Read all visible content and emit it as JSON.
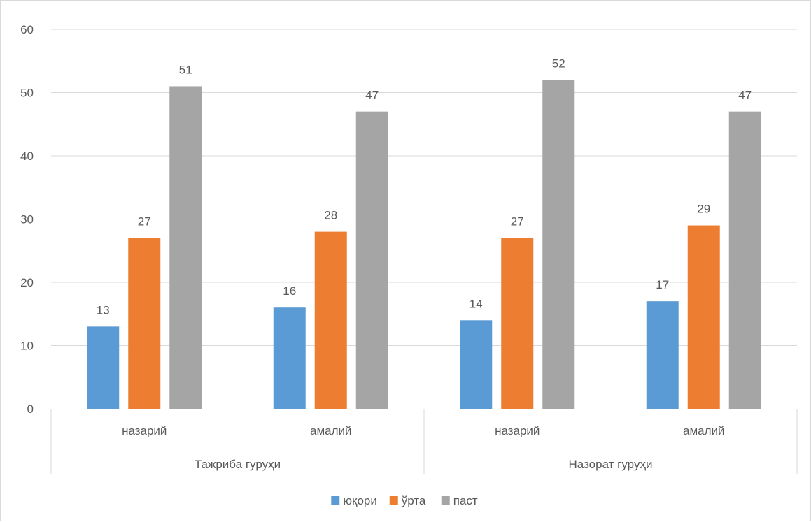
{
  "chart_data": {
    "type": "bar",
    "categories": [
      "назарий",
      "амалий",
      "назарий",
      "амалий"
    ],
    "groups": [
      {
        "label": "Тажриба гуруҳи",
        "categories": [
          "назарий",
          "амалий"
        ]
      },
      {
        "label": "Назорат гуруҳи",
        "categories": [
          "назарий",
          "амалий"
        ]
      }
    ],
    "series": [
      {
        "name": "юқори",
        "color": "#5b9bd5",
        "values": [
          13,
          16,
          14,
          17
        ]
      },
      {
        "name": "ўрта",
        "color": "#ed7d31",
        "values": [
          27,
          28,
          27,
          29
        ]
      },
      {
        "name": "паст",
        "color": "#a5a5a5",
        "values": [
          51,
          47,
          52,
          47
        ]
      }
    ],
    "ylim": [
      0,
      60
    ],
    "yticks": [
      0,
      10,
      20,
      30,
      40,
      50,
      60
    ],
    "grid": true,
    "data_labels": true,
    "legend_position": "bottom",
    "title": "",
    "xlabel": "",
    "ylabel": ""
  }
}
